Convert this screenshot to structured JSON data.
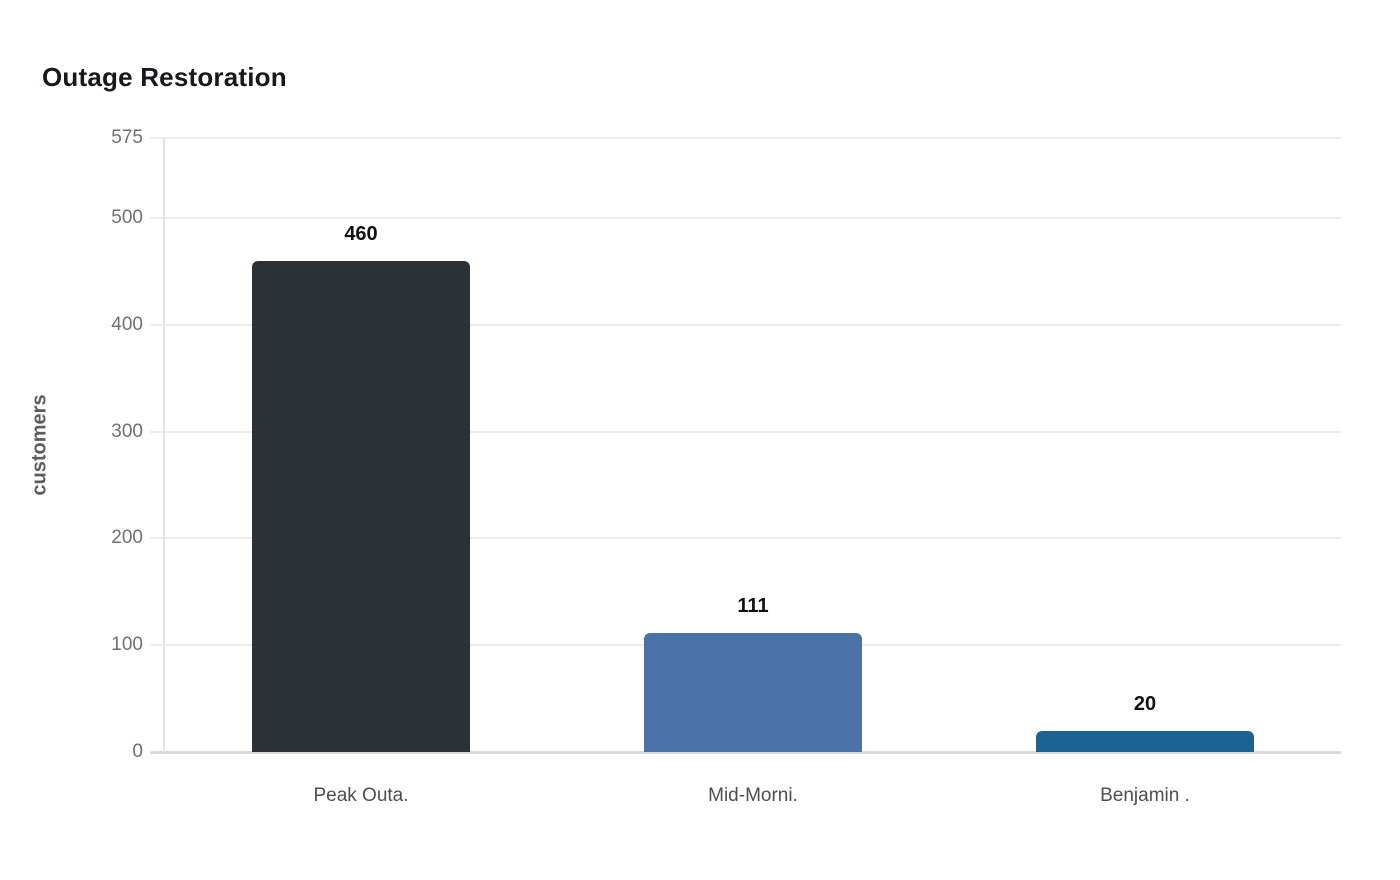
{
  "chart_data": {
    "type": "bar",
    "title": "Outage Restoration",
    "xlabel": "",
    "ylabel": "customers",
    "categories": [
      "Peak Outa.",
      "Mid-Morni.",
      "Benjamin ."
    ],
    "values": [
      460,
      111,
      20
    ],
    "value_labels": [
      "460",
      "111",
      "20"
    ],
    "bar_colors": [
      "#2b3137",
      "#4a72a8",
      "#1d6391"
    ],
    "yticks": [
      0,
      100,
      200,
      300,
      400,
      500,
      575
    ],
    "ylim": [
      0,
      575
    ],
    "grid": true,
    "legend_position": "none",
    "colors": {
      "background": "#ffffff",
      "title_text": "#16191d",
      "y_tick_label": "#6e7075",
      "axis_title": "#5b5c61",
      "category_label": "#4d4e52",
      "value_label": "#111111",
      "gridline": "#ececec",
      "baseline": "#d9dadc",
      "axis_line": "#e3e4e6"
    }
  }
}
